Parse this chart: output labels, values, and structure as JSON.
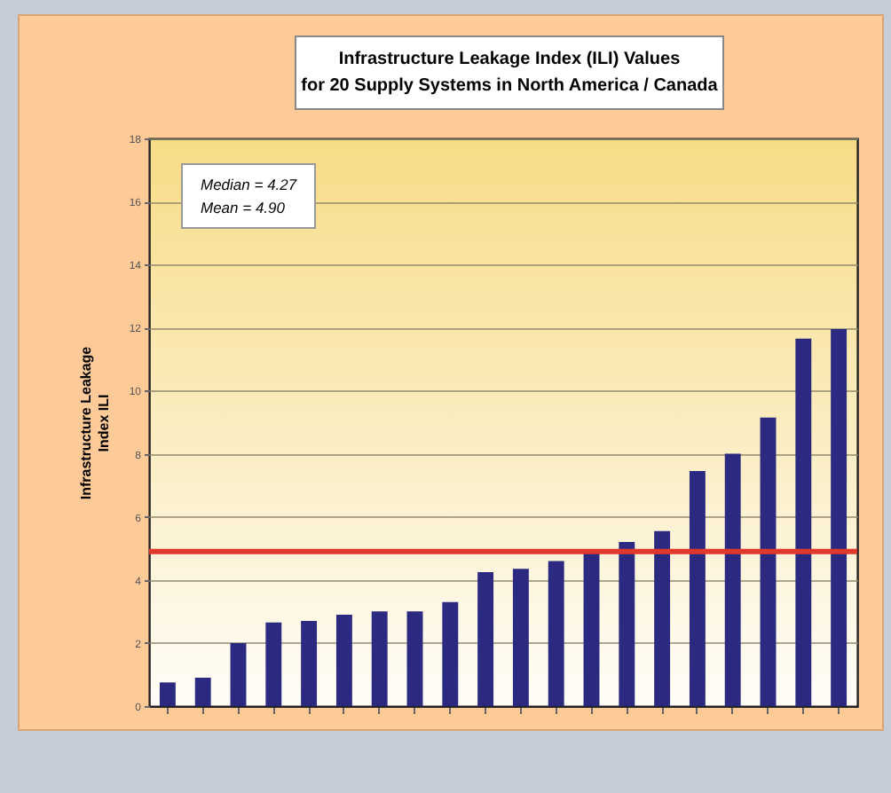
{
  "chart_data": {
    "type": "bar",
    "title": "Infrastructure Leakage Index (ILI) Values",
    "subtitle": "for 20 Supply Systems in North America / Canada",
    "ylabel": "Infrastructure Leakage Index ILI",
    "categories": [
      null,
      null,
      null,
      null,
      null,
      null,
      null,
      null,
      null,
      null,
      null,
      null,
      null,
      null,
      null,
      null,
      null,
      null,
      null,
      null
    ],
    "values": [
      0.75,
      0.9,
      2.0,
      2.65,
      2.7,
      2.9,
      3.0,
      3.0,
      3.3,
      4.25,
      4.35,
      4.6,
      4.9,
      5.2,
      5.55,
      7.45,
      8.0,
      9.15,
      11.65,
      11.95
    ],
    "color": "#2b2a80",
    "ylim": [
      0,
      18
    ],
    "yticks": [
      0,
      2,
      4,
      6,
      8,
      10,
      12,
      14,
      16,
      18
    ],
    "grid": "y",
    "ref_lines": [
      {
        "axis": "y",
        "value": 4.9,
        "color": "#e0392b"
      }
    ],
    "annotations": [
      "Median = 4.27",
      "Mean = 4.90"
    ]
  }
}
